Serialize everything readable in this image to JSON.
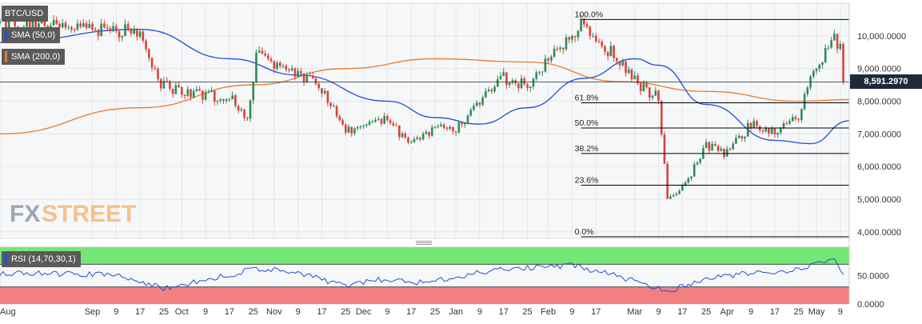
{
  "legend": {
    "pair": "BTC/USD",
    "sma50": "SMA (50,0)",
    "sma200": "SMA (200,0)",
    "rsi": "RSI (14,70,30,1)"
  },
  "colors": {
    "candle_up": "#2e8b57",
    "candle_down": "#d9433b",
    "sma50": "#1f4fd6",
    "sma200": "#ea7b2a",
    "rsi_line": "#1f4fd6",
    "rsi_overbought_zone": "#66e366",
    "rsi_oversold_zone": "#f26b6b",
    "fib_line": "#000000",
    "price_tag_bg": "#1f2a36",
    "watermark": "#9fa6ad"
  },
  "watermark": {
    "left": "FX",
    "right": "STREET"
  },
  "current_price": "8,591.2970",
  "x_axis_labels": [
    "Aug",
    "Sep",
    "9",
    "17",
    "25",
    "Oct",
    "9",
    "17",
    "25",
    "Nov",
    "9",
    "17",
    "25",
    "Dec",
    "9",
    "17",
    "25",
    "Jan",
    "9",
    "17",
    "25",
    "Feb",
    "9",
    "17",
    "Mar",
    "9",
    "17",
    "25",
    "Apr",
    "9",
    "17",
    "25",
    "May",
    "9"
  ],
  "y_axis_labels": [
    "10,000.0000",
    "9,000.0000",
    "8,000.0000",
    "7,000.0000",
    "6,000.0000",
    "5,000.0000",
    "4,000.0000"
  ],
  "rsi_axis_labels": [
    "50.0000",
    "0.0000"
  ],
  "chart_data": {
    "type": "candlestick",
    "title": "BTC/USD",
    "ylim": [
      3800,
      11000
    ],
    "y_ticks": [
      10000,
      9000,
      8000,
      7000,
      6000,
      5000,
      4000
    ],
    "timeframe": "daily",
    "x_range": [
      "2019-08-01",
      "2020-05-12"
    ],
    "last_price": 8591.297,
    "series": [
      {
        "name": "BTC/USD",
        "approx_closes": [
          {
            "date": "2019-08-01",
            "close": 10400
          },
          {
            "date": "2019-08-15",
            "close": 10300
          },
          {
            "date": "2019-09-01",
            "close": 10200
          },
          {
            "date": "2019-09-17",
            "close": 10100
          },
          {
            "date": "2019-09-24",
            "close": 8500
          },
          {
            "date": "2019-10-01",
            "close": 8300
          },
          {
            "date": "2019-10-17",
            "close": 8100
          },
          {
            "date": "2019-10-23",
            "close": 7500
          },
          {
            "date": "2019-10-26",
            "close": 9400
          },
          {
            "date": "2019-11-01",
            "close": 9200
          },
          {
            "date": "2019-11-09",
            "close": 8800
          },
          {
            "date": "2019-11-17",
            "close": 8400
          },
          {
            "date": "2019-11-25",
            "close": 7100
          },
          {
            "date": "2019-12-01",
            "close": 7300
          },
          {
            "date": "2019-12-09",
            "close": 7400
          },
          {
            "date": "2019-12-17",
            "close": 6700
          },
          {
            "date": "2019-12-25",
            "close": 7200
          },
          {
            "date": "2020-01-01",
            "close": 7200
          },
          {
            "date": "2020-01-09",
            "close": 8000
          },
          {
            "date": "2020-01-17",
            "close": 8700
          },
          {
            "date": "2020-01-25",
            "close": 8500
          },
          {
            "date": "2020-02-01",
            "close": 9300
          },
          {
            "date": "2020-02-09",
            "close": 10100
          },
          {
            "date": "2020-02-13",
            "close": 10400
          },
          {
            "date": "2020-02-17",
            "close": 9800
          },
          {
            "date": "2020-02-25",
            "close": 9300
          },
          {
            "date": "2020-03-01",
            "close": 8600
          },
          {
            "date": "2020-03-09",
            "close": 8100
          },
          {
            "date": "2020-03-12",
            "close": 4900
          },
          {
            "date": "2020-03-17",
            "close": 5300
          },
          {
            "date": "2020-03-25",
            "close": 6600
          },
          {
            "date": "2020-04-01",
            "close": 6400
          },
          {
            "date": "2020-04-09",
            "close": 7300
          },
          {
            "date": "2020-04-17",
            "close": 7100
          },
          {
            "date": "2020-04-25",
            "close": 7500
          },
          {
            "date": "2020-04-29",
            "close": 8800
          },
          {
            "date": "2020-05-07",
            "close": 9900
          },
          {
            "date": "2020-05-09",
            "close": 9700
          },
          {
            "date": "2020-05-10",
            "close": 8591
          }
        ]
      },
      {
        "name": "SMA (50,0)",
        "approx_values": [
          {
            "date": "2019-08-01",
            "value": 9800
          },
          {
            "date": "2019-09-17",
            "value": 10200
          },
          {
            "date": "2019-10-17",
            "value": 9300
          },
          {
            "date": "2019-11-09",
            "value": 8800
          },
          {
            "date": "2019-12-09",
            "value": 8000
          },
          {
            "date": "2019-12-25",
            "value": 7500
          },
          {
            "date": "2020-01-09",
            "value": 7300
          },
          {
            "date": "2020-01-25",
            "value": 7800
          },
          {
            "date": "2020-02-13",
            "value": 8700
          },
          {
            "date": "2020-03-01",
            "value": 9300
          },
          {
            "date": "2020-03-09",
            "value": 9100
          },
          {
            "date": "2020-03-25",
            "value": 7900
          },
          {
            "date": "2020-04-17",
            "value": 6800
          },
          {
            "date": "2020-04-29",
            "value": 6700
          },
          {
            "date": "2020-05-12",
            "value": 7400
          }
        ]
      },
      {
        "name": "SMA (200,0)",
        "approx_values": [
          {
            "date": "2019-08-01",
            "value": 7000
          },
          {
            "date": "2019-09-17",
            "value": 7800
          },
          {
            "date": "2019-10-25",
            "value": 8500
          },
          {
            "date": "2019-11-25",
            "value": 9000
          },
          {
            "date": "2019-12-25",
            "value": 9300
          },
          {
            "date": "2020-01-25",
            "value": 9200
          },
          {
            "date": "2020-02-25",
            "value": 8600
          },
          {
            "date": "2020-03-25",
            "value": 8300
          },
          {
            "date": "2020-04-25",
            "value": 8000
          },
          {
            "date": "2020-05-12",
            "value": 8050
          }
        ]
      }
    ],
    "fibonacci": [
      {
        "label": "100.0%",
        "value": 10500
      },
      {
        "label": "61.8%",
        "value": 7950
      },
      {
        "label": "50.0%",
        "value": 7180
      },
      {
        "label": "38.2%",
        "value": 6400
      },
      {
        "label": "23.6%",
        "value": 5430
      },
      {
        "label": "0.0%",
        "value": 3850
      }
    ],
    "rsi": {
      "name": "RSI (14,70,30,1)",
      "ylim": [
        0,
        100
      ],
      "overbought": 70,
      "oversold": 30,
      "approx_values": [
        {
          "date": "2019-08-01",
          "value": 55
        },
        {
          "date": "2019-09-09",
          "value": 52
        },
        {
          "date": "2019-09-25",
          "value": 28
        },
        {
          "date": "2019-10-09",
          "value": 42
        },
        {
          "date": "2019-10-26",
          "value": 62
        },
        {
          "date": "2019-11-09",
          "value": 55
        },
        {
          "date": "2019-11-25",
          "value": 32
        },
        {
          "date": "2019-12-09",
          "value": 45
        },
        {
          "date": "2019-12-17",
          "value": 35
        },
        {
          "date": "2020-01-01",
          "value": 48
        },
        {
          "date": "2020-01-17",
          "value": 62
        },
        {
          "date": "2020-02-09",
          "value": 68
        },
        {
          "date": "2020-02-25",
          "value": 48
        },
        {
          "date": "2020-03-12",
          "value": 22
        },
        {
          "date": "2020-03-25",
          "value": 45
        },
        {
          "date": "2020-04-09",
          "value": 55
        },
        {
          "date": "2020-04-25",
          "value": 60
        },
        {
          "date": "2020-05-07",
          "value": 78
        },
        {
          "date": "2020-05-10",
          "value": 52
        }
      ]
    }
  }
}
